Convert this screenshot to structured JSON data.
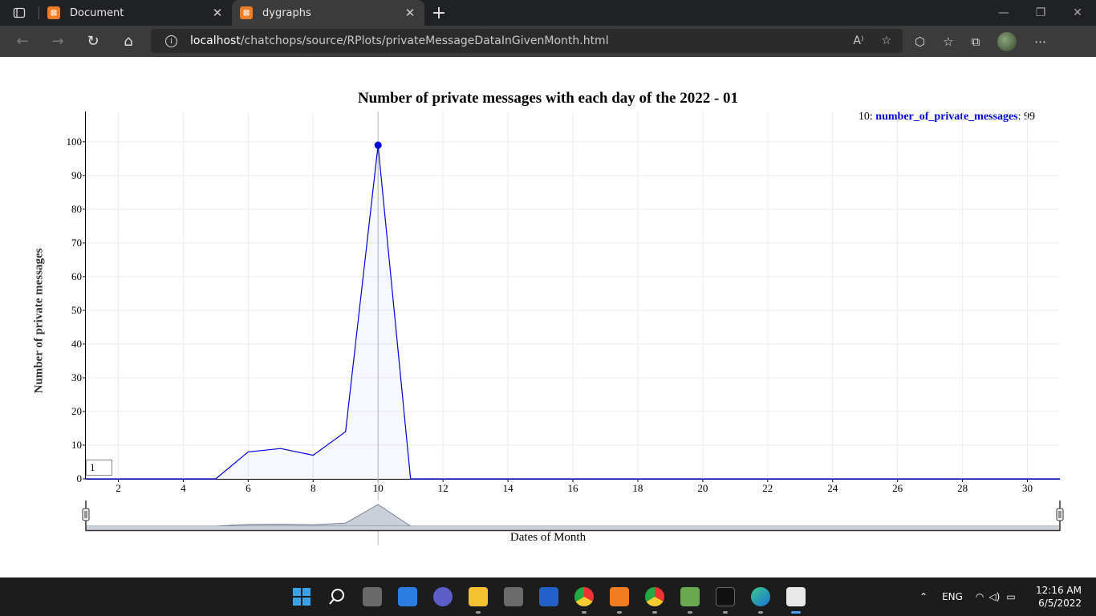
{
  "browser": {
    "tabs": [
      {
        "title": "Document",
        "active": false
      },
      {
        "title": "dygraphs",
        "active": true
      }
    ],
    "url_host": "localhost",
    "url_path": "/chatchops/source/RPlots/privateMessageDataInGivenMonth.html"
  },
  "chart": {
    "title": "Number of private messages with each day of the 2022 - 01",
    "ylabel": "Number of private messages",
    "xlabel": "Dates of Month",
    "legend": {
      "x_value": "10",
      "series_name": "number_of_private_messages",
      "y_value": "99"
    },
    "roller_value": "1"
  },
  "chart_data": {
    "type": "line",
    "series": [
      {
        "name": "number_of_private_messages",
        "color": "#0000dd",
        "x": [
          1,
          2,
          3,
          4,
          5,
          6,
          7,
          8,
          9,
          10,
          11,
          12,
          13,
          14,
          15,
          16,
          17,
          18,
          19,
          20,
          21,
          22,
          23,
          24,
          25,
          26,
          27,
          28,
          29,
          30,
          31
        ],
        "values": [
          0,
          0,
          0,
          0,
          0,
          8,
          9,
          7,
          14,
          99,
          0,
          0,
          0,
          0,
          0,
          0,
          0,
          0,
          0,
          0,
          0,
          0,
          0,
          0,
          0,
          0,
          0,
          0,
          0,
          0,
          0
        ]
      }
    ],
    "xlim": [
      1,
      31
    ],
    "ylim": [
      0,
      109
    ],
    "x_ticks": [
      2,
      4,
      6,
      8,
      10,
      12,
      14,
      16,
      18,
      20,
      22,
      24,
      26,
      28,
      30
    ],
    "y_ticks": [
      0,
      10,
      20,
      30,
      40,
      50,
      60,
      70,
      80,
      90,
      100
    ],
    "highlighted_x": 10,
    "fill": true,
    "grid": true,
    "range_selector": true,
    "legend_position": "top-right"
  },
  "taskbar": {
    "language": "ENG",
    "time": "12:16 AM",
    "date": "6/5/2022"
  }
}
